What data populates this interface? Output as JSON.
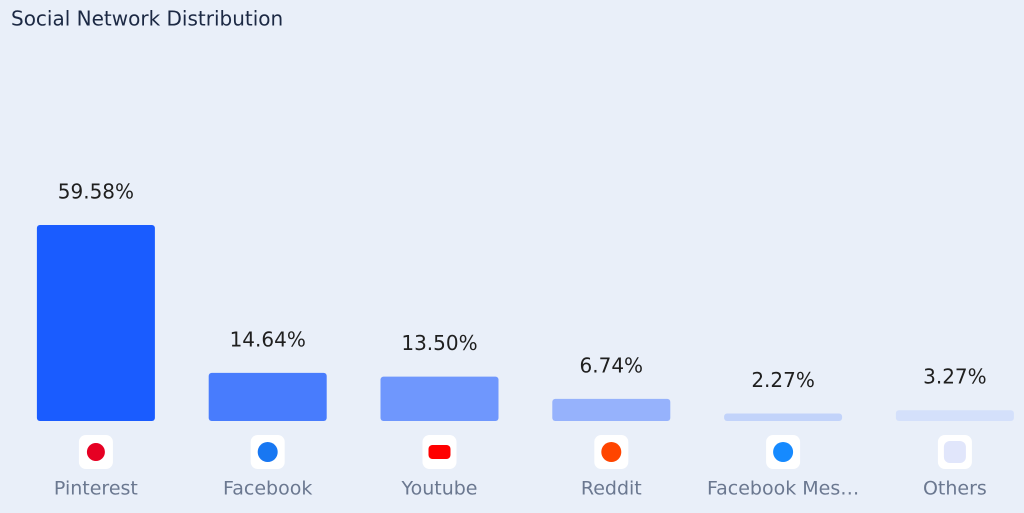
{
  "chart_data": {
    "type": "bar",
    "title": "Social Network Distribution",
    "categories": [
      "Pinterest",
      "Facebook",
      "Youtube",
      "Reddit",
      "Facebook Mes…",
      "Others"
    ],
    "values": [
      59.58,
      14.64,
      13.5,
      6.74,
      2.27,
      3.27
    ],
    "value_labels": [
      "59.58%",
      "14.64%",
      "13.50%",
      "6.74%",
      "2.27%",
      "3.27%"
    ],
    "colors": [
      "#1a5cff",
      "#487cfd",
      "#6f97fd",
      "#96b2fc",
      "#c2d3fa",
      "#d4e0fb"
    ]
  }
}
